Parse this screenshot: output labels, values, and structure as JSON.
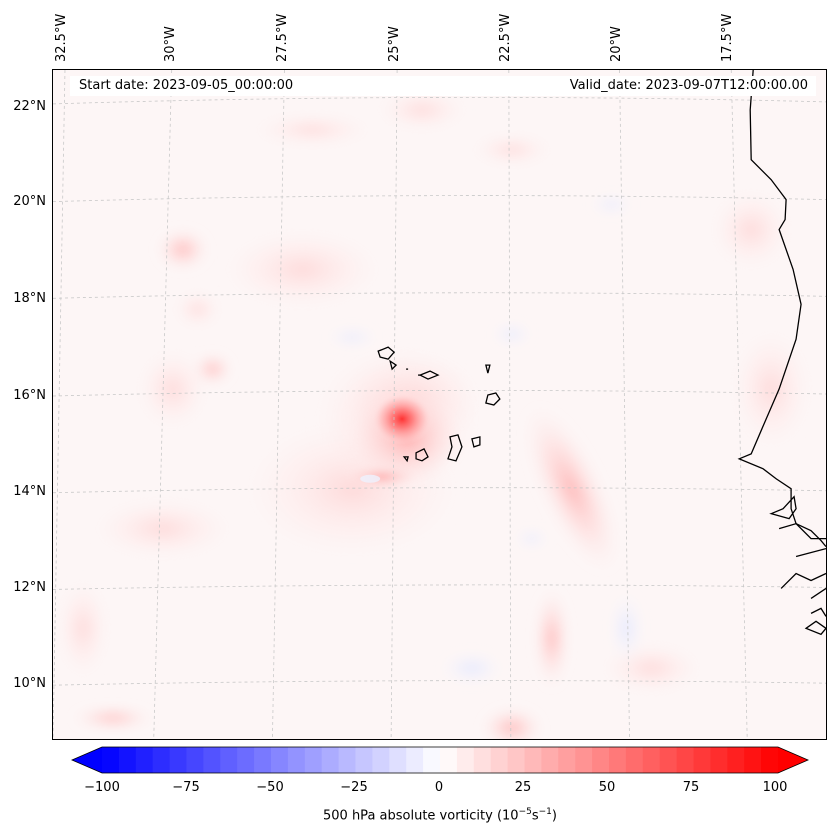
{
  "header": {
    "start_date": "Start date: 2023-09-05_00:00:00",
    "valid_date": "Valid_date: 2023-09-07T12:00:00.00"
  },
  "latitude_labels": [
    "22°N",
    "20°N",
    "18°N",
    "16°N",
    "14°N",
    "12°N",
    "10°N"
  ],
  "longitude_labels": [
    "32.5°W",
    "30°W",
    "27.5°W",
    "25°W",
    "22.5°W",
    "20°W",
    "17.5°W"
  ],
  "colorbar": {
    "ticks": [
      "−100",
      "−75",
      "−50",
      "−25",
      "0",
      "25",
      "50",
      "75",
      "100"
    ],
    "min": -100,
    "max": 100,
    "label_prefix": "500 hPa absolute vorticity (10",
    "label_exp1": "−5",
    "label_mid": "s",
    "label_exp2": "−1",
    "label_suffix": ")",
    "negative_color": "#0000ff",
    "positive_color": "#ff0000"
  },
  "map": {
    "features": [
      "vorticity-max-cape-verde",
      "coastline-west-africa",
      "cape-verde-islands"
    ]
  }
}
